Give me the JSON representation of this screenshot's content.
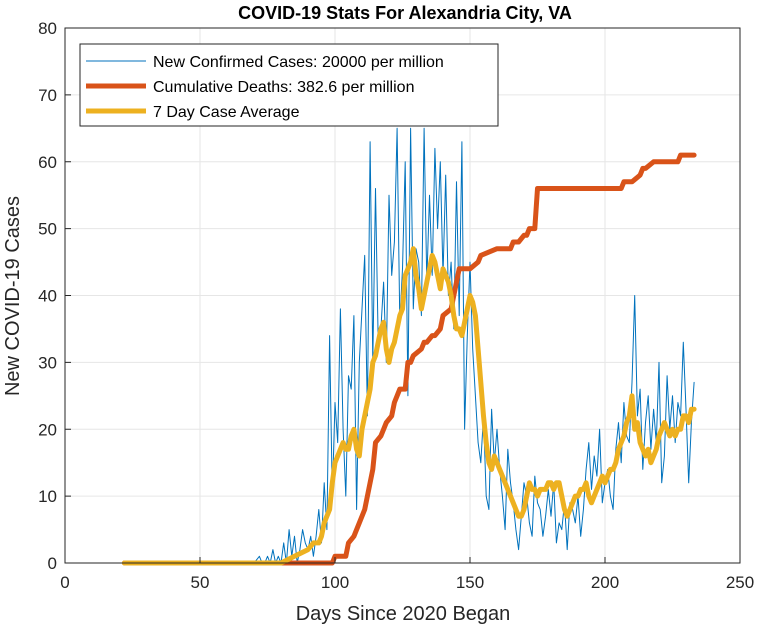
{
  "chart_data": {
    "type": "line",
    "title": "COVID-19 Stats For Alexandria City, VA",
    "xlabel": "Days Since 2020 Began",
    "ylabel": "New COVID-19 Cases",
    "xlim": [
      0,
      250
    ],
    "ylim": [
      0,
      80
    ],
    "xticks": [
      "0",
      "50",
      "100",
      "150",
      "200",
      "250"
    ],
    "yticks": [
      "0",
      "10",
      "20",
      "30",
      "40",
      "50",
      "60",
      "70",
      "80"
    ],
    "grid": true,
    "legend_position": "top-left",
    "series": [
      {
        "name": "New Confirmed Cases: 20000 per million",
        "color": "#0072BD",
        "line_width": "thin",
        "x": [
          22,
          70,
          72,
          73,
          74,
          75,
          76,
          77,
          78,
          79,
          80,
          81,
          82,
          83,
          84,
          85,
          86,
          87,
          88,
          89,
          90,
          91,
          92,
          93,
          94,
          95,
          96,
          97,
          98,
          99,
          100,
          101,
          102,
          103,
          104,
          105,
          106,
          107,
          108,
          109,
          110,
          111,
          112,
          113,
          114,
          115,
          116,
          117,
          118,
          119,
          120,
          121,
          122,
          123,
          124,
          125,
          126,
          127,
          128,
          129,
          130,
          131,
          132,
          133,
          134,
          135,
          136,
          137,
          138,
          139,
          140,
          141,
          142,
          143,
          144,
          145,
          146,
          147,
          148,
          149,
          150,
          151,
          152,
          153,
          154,
          155,
          156,
          157,
          158,
          159,
          160,
          161,
          162,
          163,
          164,
          165,
          166,
          167,
          168,
          169,
          170,
          171,
          172,
          173,
          174,
          175,
          176,
          177,
          178,
          179,
          180,
          181,
          182,
          183,
          184,
          185,
          186,
          187,
          188,
          189,
          190,
          191,
          192,
          193,
          194,
          195,
          196,
          197,
          198,
          199,
          200,
          201,
          202,
          203,
          204,
          205,
          206,
          207,
          208,
          209,
          210,
          211,
          212,
          213,
          214,
          215,
          216,
          217,
          218,
          219,
          220,
          221,
          222,
          223,
          224,
          225,
          226,
          227,
          228,
          229,
          230,
          231,
          232,
          233
        ],
        "values": [
          0,
          0,
          1,
          0,
          0,
          1,
          0,
          2,
          0,
          1,
          0,
          3,
          0,
          5,
          1,
          4,
          0,
          2,
          5,
          3,
          2,
          4,
          1,
          4,
          8,
          3,
          12,
          5,
          34,
          10,
          24,
          18,
          38,
          20,
          10,
          28,
          26,
          37,
          8,
          30,
          38,
          46,
          22,
          63,
          30,
          56,
          33,
          35,
          42,
          30,
          55,
          43,
          48,
          65,
          36,
          44,
          60,
          25,
          65,
          38,
          47,
          45,
          37,
          65,
          42,
          55,
          43,
          62,
          50,
          60,
          43,
          58,
          40,
          45,
          35,
          57,
          37,
          63,
          20,
          34,
          45,
          32,
          25,
          18,
          15,
          22,
          10,
          8,
          23,
          15,
          20,
          14,
          10,
          5,
          17,
          12,
          9,
          5,
          2,
          7,
          12,
          10,
          6,
          4,
          13,
          9,
          8,
          4,
          7,
          11,
          7,
          12,
          3,
          6,
          5,
          9,
          2,
          9,
          8,
          6,
          10,
          4,
          8,
          14,
          18,
          11,
          16,
          13,
          20,
          9,
          12,
          14,
          10,
          8,
          17,
          21,
          15,
          24,
          19,
          18,
          27,
          40,
          22,
          26,
          14,
          21,
          25,
          17,
          23,
          18,
          30,
          12,
          16,
          28,
          20,
          25,
          18,
          24,
          22,
          33,
          23,
          12,
          21,
          27
        ],
        "note": "x-values are approximate read-outs of day numbers; case counts estimated from gridlines"
      },
      {
        "name": "Cumulative Deaths: 382.6 per million",
        "color": "#D95319",
        "line_width": "thick",
        "x": [
          22,
          99,
          100,
          104,
          105,
          107,
          109,
          111,
          113,
          114,
          115,
          117,
          118,
          119,
          121,
          122,
          123,
          124,
          126,
          127,
          128,
          129,
          132,
          133,
          134,
          136,
          137,
          139,
          140,
          143,
          144,
          145,
          146,
          147,
          148,
          150,
          153,
          154,
          160,
          161,
          165,
          166,
          168,
          170,
          171,
          172,
          174,
          175,
          176,
          177,
          178,
          199,
          200,
          206,
          207,
          208,
          209,
          210,
          213,
          214,
          215,
          218,
          219,
          226,
          227,
          228,
          230,
          233
        ],
        "values": [
          0,
          0,
          1,
          1,
          3,
          4,
          6,
          8,
          12,
          14,
          18,
          19,
          20,
          21,
          22,
          24,
          25,
          26,
          26,
          30,
          30,
          31,
          32,
          33,
          33,
          34,
          34,
          35,
          37,
          38,
          40,
          42,
          44,
          44,
          44,
          44,
          45,
          46,
          47,
          47,
          47,
          48,
          48,
          49,
          49,
          50,
          50,
          56,
          56,
          56,
          56,
          56,
          56,
          56,
          57,
          57,
          57,
          57,
          58,
          59,
          59,
          60,
          60,
          60,
          60,
          61,
          61,
          61
        ],
        "note": "step approximations estimated from chart"
      },
      {
        "name": "7 Day Case Average",
        "color": "#EDB120",
        "line_width": "thick",
        "x": [
          22,
          70,
          75,
          80,
          85,
          90,
          92,
          94,
          95,
          96,
          97,
          98,
          99,
          100,
          101,
          102,
          103,
          104,
          105,
          106,
          107,
          108,
          109,
          110,
          111,
          112,
          113,
          114,
          115,
          116,
          117,
          118,
          119,
          120,
          121,
          122,
          123,
          124,
          125,
          126,
          127,
          128,
          129,
          130,
          131,
          132,
          133,
          134,
          135,
          136,
          137,
          138,
          139,
          140,
          141,
          142,
          143,
          144,
          145,
          146,
          147,
          148,
          149,
          150,
          151,
          152,
          153,
          154,
          155,
          156,
          157,
          158,
          159,
          160,
          161,
          162,
          163,
          164,
          165,
          166,
          167,
          168,
          169,
          170,
          171,
          172,
          173,
          174,
          175,
          176,
          177,
          178,
          179,
          180,
          181,
          182,
          183,
          184,
          185,
          186,
          187,
          188,
          189,
          190,
          191,
          192,
          193,
          194,
          195,
          196,
          197,
          198,
          199,
          200,
          201,
          202,
          203,
          204,
          205,
          206,
          207,
          208,
          209,
          210,
          211,
          212,
          213,
          214,
          215,
          216,
          217,
          218,
          219,
          220,
          221,
          222,
          223,
          224,
          225,
          226,
          227,
          228,
          229,
          230,
          231,
          232,
          233
        ],
        "values": [
          0,
          0,
          0,
          0,
          1,
          2,
          3,
          3,
          4,
          6,
          7,
          8,
          12,
          15,
          16,
          17,
          18,
          17,
          17,
          19,
          20,
          17,
          16,
          20,
          22,
          24,
          26,
          30,
          31,
          33,
          35,
          36,
          32,
          30,
          32,
          33,
          35,
          37,
          38,
          43,
          44,
          45,
          47,
          43,
          41,
          38,
          40,
          42,
          44,
          46,
          45,
          43,
          41,
          44,
          43,
          42,
          40,
          37,
          35,
          35,
          34,
          36,
          38,
          40,
          39,
          37,
          32,
          27,
          22,
          18,
          15,
          14,
          16,
          15,
          14,
          13,
          12,
          11,
          10,
          9,
          8,
          7,
          7,
          8,
          10,
          12,
          11,
          11,
          10,
          11,
          11,
          11,
          12,
          12,
          11,
          12,
          12,
          10,
          8,
          7,
          8,
          9,
          10,
          10,
          11,
          11,
          12,
          10,
          9,
          10,
          11,
          12,
          13,
          12,
          13,
          14,
          14,
          15,
          17,
          18,
          19,
          21,
          22,
          25,
          20,
          21,
          18,
          17,
          16,
          17,
          15,
          16,
          17,
          19,
          20,
          21,
          20,
          19,
          20,
          19,
          20,
          20,
          22,
          22,
          21,
          23,
          23
        ],
        "note": "rolling average estimated from chart"
      }
    ]
  }
}
